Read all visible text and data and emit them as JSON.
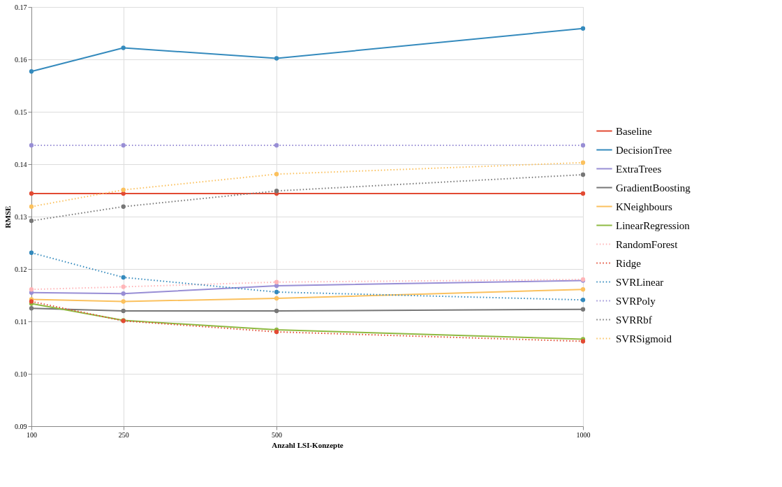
{
  "chart_data": {
    "type": "line",
    "xlabel": "Anzahl LSI-Konzepte",
    "ylabel": "RMSE",
    "x": [
      100,
      250,
      500,
      1000
    ],
    "xlim": [
      100,
      1000
    ],
    "xticks": [
      100,
      250,
      500,
      1000
    ],
    "ylim": [
      0.09,
      0.17
    ],
    "yticks": [
      0.09,
      {
        "value": 0.1,
        "label": "0.10"
      },
      0.11,
      0.12,
      0.13,
      0.14,
      0.15,
      0.16,
      0.17
    ],
    "grid": true,
    "legend": "right",
    "marker": "circle",
    "series": [
      {
        "name": "Baseline",
        "color": "#e24a33",
        "line_style": "solid",
        "values": [
          0.1344,
          0.1344,
          0.1344,
          0.1344
        ]
      },
      {
        "name": "DecisionTree",
        "color": "#348abd",
        "line_style": "solid",
        "values": [
          0.1577,
          0.1622,
          0.1602,
          0.1659
        ]
      },
      {
        "name": "ExtraTrees",
        "color": "#988ed5",
        "line_style": "solid",
        "values": [
          0.1155,
          0.1153,
          0.1168,
          0.1178
        ]
      },
      {
        "name": "GradientBoosting",
        "color": "#777777",
        "line_style": "solid",
        "values": [
          0.1125,
          0.112,
          0.112,
          0.1123
        ]
      },
      {
        "name": "KNeighbours",
        "color": "#fbc15e",
        "line_style": "solid",
        "values": [
          0.1142,
          0.1138,
          0.1144,
          0.1161
        ]
      },
      {
        "name": "LinearRegression",
        "color": "#8eba42",
        "line_style": "solid",
        "values": [
          0.1134,
          0.1102,
          0.1084,
          0.1066
        ]
      },
      {
        "name": "RandomForest",
        "color": "#ffb5b8",
        "line_style": "dotted",
        "values": [
          0.1161,
          0.1166,
          0.1175,
          0.118
        ]
      },
      {
        "name": "Ridge",
        "color": "#e24a33",
        "line_style": "dotted",
        "values": [
          0.1138,
          0.1101,
          0.108,
          0.1062
        ]
      },
      {
        "name": "SVRLinear",
        "color": "#348abd",
        "line_style": "dotted",
        "values": [
          0.1231,
          0.1184,
          0.1156,
          0.1141
        ]
      },
      {
        "name": "SVRPoly",
        "color": "#988ed5",
        "line_style": "dotted",
        "values": [
          0.1436,
          0.1436,
          0.1436,
          0.1436
        ]
      },
      {
        "name": "SVRRbf",
        "color": "#777777",
        "line_style": "dotted",
        "values": [
          0.1292,
          0.1319,
          0.1349,
          0.138
        ]
      },
      {
        "name": "SVRSigmoid",
        "color": "#fbc15e",
        "line_style": "dotted",
        "values": [
          0.1319,
          0.1351,
          0.1381,
          0.1403
        ]
      }
    ]
  }
}
